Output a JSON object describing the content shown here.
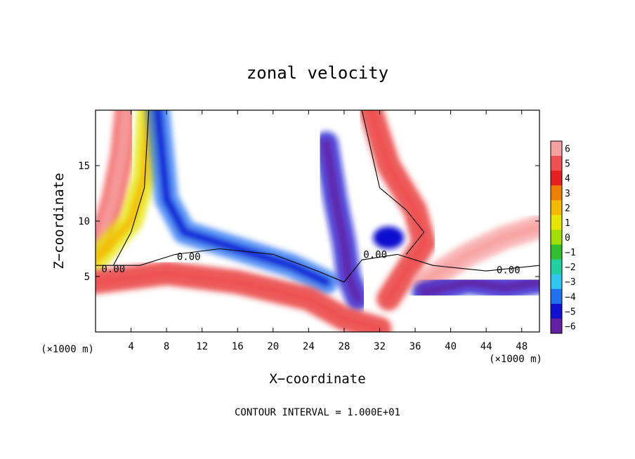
{
  "chart_data": {
    "type": "heatmap",
    "title": "zonal velocity",
    "xlabel": "X−coordinate",
    "ylabel": "Z−coordinate",
    "x_unit_left": "(×1000 m)",
    "x_unit_right": "(×1000 m)",
    "footer": "CONTOUR INTERVAL = 1.000E+01",
    "xlim": [
      0,
      50
    ],
    "ylim": [
      0,
      20
    ],
    "x_ticks": [
      4,
      8,
      12,
      16,
      20,
      24,
      28,
      32,
      36,
      40,
      44,
      48
    ],
    "y_ticks": [
      5,
      10,
      15
    ],
    "colorbar": {
      "levels": [
        6,
        5,
        4,
        3,
        2,
        1,
        0,
        -1,
        -2,
        -3,
        -4,
        -5,
        -6
      ],
      "labels": [
        "6",
        "5",
        "4",
        "3",
        "2",
        "1",
        "0",
        "−1",
        "−2",
        "−3",
        "−4",
        "−5",
        "−6"
      ],
      "colors": [
        "#f7a0a0",
        "#f05050",
        "#e62020",
        "#f08000",
        "#f5b800",
        "#e6e600",
        "#a0e000",
        "#30c030",
        "#20d0a0",
        "#30c8f0",
        "#2070f0",
        "#1010d0",
        "#6020a0"
      ]
    },
    "contour_labels": [
      {
        "text": "0.00",
        "x": 2,
        "y": 5.7
      },
      {
        "text": "0.00",
        "x": 10.5,
        "y": 6.8
      },
      {
        "text": "0.00",
        "x": 31.5,
        "y": 7
      },
      {
        "text": "0.00",
        "x": 46.5,
        "y": 5.6
      }
    ],
    "features": [
      {
        "type": "positive_band",
        "value": 5,
        "path": [
          [
            0.5,
            8
          ],
          [
            2,
            12
          ],
          [
            3,
            16
          ],
          [
            3.5,
            20
          ]
        ]
      },
      {
        "type": "positive_band",
        "value": 1,
        "path": [
          [
            0,
            6.5
          ],
          [
            4,
            10
          ],
          [
            5.5,
            14
          ],
          [
            6,
            20
          ]
        ]
      },
      {
        "type": "negative_band",
        "value": -4,
        "path": [
          [
            7,
            20
          ],
          [
            8,
            12
          ],
          [
            10,
            9
          ],
          [
            16,
            7.5
          ],
          [
            22,
            6
          ],
          [
            26,
            4.5
          ]
        ]
      },
      {
        "type": "negative_jet",
        "value": -5,
        "path": [
          [
            26,
            17
          ],
          [
            27,
            12
          ],
          [
            28,
            8
          ],
          [
            28.5,
            5
          ],
          [
            29.5,
            3
          ]
        ]
      },
      {
        "type": "negative_blob",
        "value": -5,
        "x": 33,
        "y": 8.5
      },
      {
        "type": "positive_band",
        "value": 4,
        "path": [
          [
            31,
            20
          ],
          [
            33,
            15
          ],
          [
            36,
            11
          ],
          [
            37,
            8
          ],
          [
            35,
            5.5
          ],
          [
            33,
            3
          ]
        ]
      },
      {
        "type": "positive_band",
        "value": 4,
        "path": [
          [
            0,
            4.5
          ],
          [
            8,
            5.3
          ],
          [
            16,
            4.5
          ],
          [
            24,
            3
          ],
          [
            28,
            1.2
          ],
          [
            32,
            0.3
          ]
        ]
      },
      {
        "type": "positive_band",
        "value": 6,
        "path": [
          [
            37,
            4.5
          ],
          [
            42,
            7
          ],
          [
            46,
            8.5
          ],
          [
            50,
            9.5
          ]
        ]
      },
      {
        "type": "negative_band",
        "value": -5,
        "path": [
          [
            37,
            3.5
          ],
          [
            42,
            4.5
          ],
          [
            46,
            4
          ],
          [
            50,
            4.5
          ]
        ]
      }
    ]
  }
}
